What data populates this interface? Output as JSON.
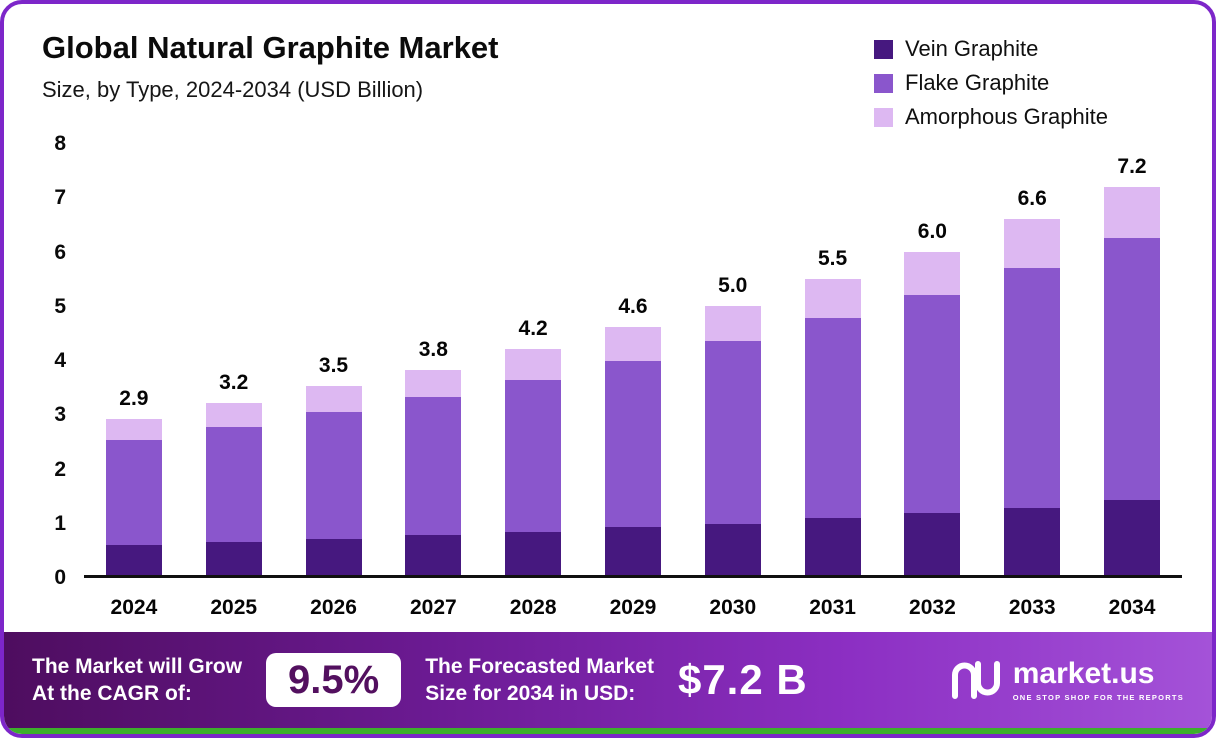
{
  "chart_data": {
    "type": "bar",
    "stacked": true,
    "title": "Global Natural Graphite Market",
    "subtitle": "Size, by Type, 2024-2034 (USD Billion)",
    "categories": [
      "2024",
      "2025",
      "2026",
      "2027",
      "2028",
      "2029",
      "2030",
      "2031",
      "2032",
      "2033",
      "2034"
    ],
    "series": [
      {
        "name": "Vein Graphite",
        "color": "#46187f",
        "values": [
          0.55,
          0.62,
          0.67,
          0.75,
          0.8,
          0.9,
          0.95,
          1.05,
          1.15,
          1.25,
          1.4
        ]
      },
      {
        "name": "Flake Graphite",
        "color": "#8a56cc",
        "values": [
          1.95,
          2.13,
          2.35,
          2.55,
          2.82,
          3.08,
          3.4,
          3.72,
          4.05,
          4.45,
          4.85
        ]
      },
      {
        "name": "Amorphous Graphite",
        "color": "#ddb8f2",
        "values": [
          0.4,
          0.45,
          0.48,
          0.5,
          0.58,
          0.62,
          0.65,
          0.73,
          0.8,
          0.9,
          0.95
        ]
      }
    ],
    "totals": [
      "2.9",
      "3.2",
      "3.5",
      "3.8",
      "4.2",
      "4.6",
      "5.0",
      "5.5",
      "6.0",
      "6.6",
      "7.2"
    ],
    "ylim": [
      0,
      8
    ],
    "yticks": [
      0,
      1,
      2,
      3,
      4,
      5,
      6,
      7,
      8
    ],
    "grid": false,
    "legend_position": "top-right"
  },
  "footer": {
    "cagr_label_line1": "The Market will Grow",
    "cagr_label_line2": "At the CAGR of:",
    "cagr_value": "9.5%",
    "forecast_label_line1": "The Forecasted Market",
    "forecast_label_line2": "Size for 2034 in USD:",
    "forecast_value": "$7.2 B",
    "brand": {
      "name": "market.us",
      "tagline": "ONE STOP SHOP FOR THE REPORTS"
    }
  },
  "colors": {
    "border": "#7d26c9",
    "footer_gradient_start": "#4e0d5f",
    "footer_gradient_end": "#a452d8",
    "bottom_strip": "#3daf2c",
    "vein": "#46187f",
    "flake": "#8a56cc",
    "amorphous": "#ddb8f2"
  }
}
